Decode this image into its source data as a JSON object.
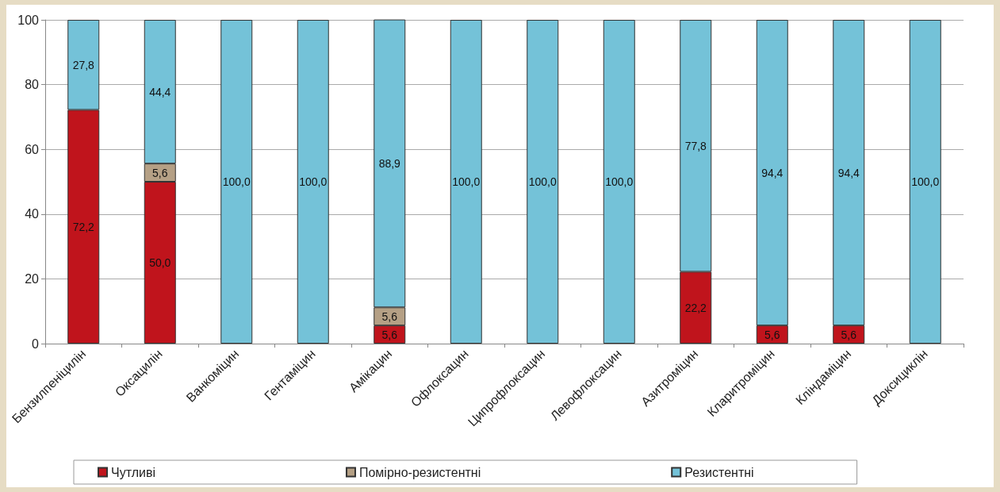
{
  "chart_data": {
    "type": "bar",
    "stacked": true,
    "categories": [
      "Бензилпеніцилін",
      "Оксацилін",
      "Ванкоміцин",
      "Гентаміцин",
      "Амікацин",
      "Офлоксацин",
      "Ципрофлоксацин",
      "Левофлоксацин",
      "Азитроміцин",
      "Кларитроміцин",
      "Кліндаміцин",
      "Доксициклін"
    ],
    "series": [
      {
        "name": "Чутливі",
        "color": "#c0141c",
        "values": [
          72.2,
          50.0,
          null,
          null,
          5.6,
          null,
          null,
          null,
          22.2,
          5.6,
          5.6,
          null
        ],
        "value_labels": [
          "72,2",
          "50,0",
          null,
          null,
          "5,6",
          null,
          null,
          null,
          "22,2",
          "5,6",
          "5,6",
          null
        ]
      },
      {
        "name": "Помірно-резистентні",
        "color": "#b5a085",
        "values": [
          null,
          5.6,
          null,
          null,
          5.6,
          null,
          null,
          null,
          null,
          null,
          null,
          null
        ],
        "value_labels": [
          null,
          "5,6",
          null,
          null,
          "5,6",
          null,
          null,
          null,
          null,
          null,
          null,
          null
        ]
      },
      {
        "name": "Резистентні",
        "color": "#74c2d8",
        "values": [
          27.8,
          44.4,
          100.0,
          100.0,
          88.9,
          100.0,
          100.0,
          100.0,
          77.8,
          94.4,
          94.4,
          100.0
        ],
        "value_labels": [
          "27,8",
          "44,4",
          "100,0",
          "100,0",
          "88,9",
          "100,0",
          "100,0",
          "100,0",
          "77,8",
          "94,4",
          "94,4",
          "100,0"
        ]
      }
    ],
    "ylim": [
      0,
      100
    ],
    "yticks": [
      0,
      20,
      40,
      60,
      80,
      100
    ],
    "grid": "y",
    "legend": "bottom"
  }
}
